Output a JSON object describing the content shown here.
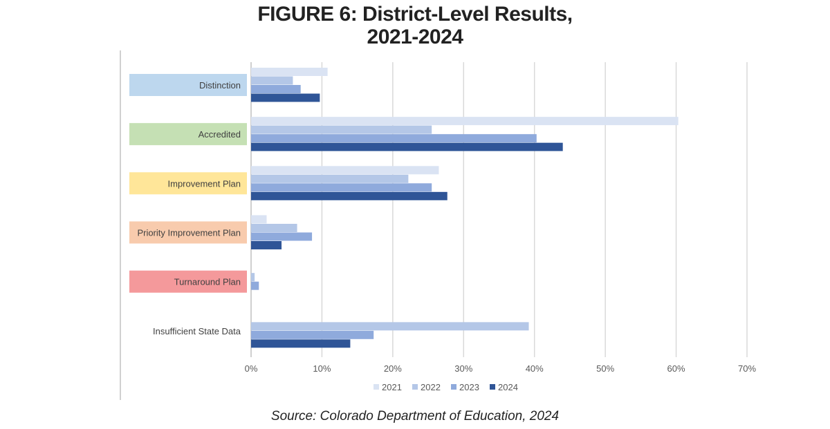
{
  "title_line1": "FIGURE 6: District-Level Results,",
  "title_line2": "2021-2024",
  "source": "Source: Colorado Department of Education, 2024",
  "chart_data": {
    "type": "bar",
    "orientation": "horizontal",
    "categories": [
      "Distinction",
      "Accredited",
      "Improvement Plan",
      "Priority Improvement Plan",
      "Turnaround Plan",
      "Insufficient State Data"
    ],
    "category_colors": [
      "#bdd7ee",
      "#c5e0b4",
      "#ffe699",
      "#f8cbad",
      "#f4999b",
      "#ffffff"
    ],
    "series": [
      {
        "name": "2021",
        "color": "#dae3f3",
        "values": [
          10.8,
          60.3,
          26.5,
          2.2,
          0,
          0
        ]
      },
      {
        "name": "2022",
        "color": "#b4c7e7",
        "values": [
          5.9,
          25.5,
          22.2,
          6.5,
          0.5,
          39.2
        ]
      },
      {
        "name": "2023",
        "color": "#8faadc",
        "values": [
          7.0,
          40.3,
          25.5,
          8.6,
          1.1,
          17.3
        ]
      },
      {
        "name": "2024",
        "color": "#2f5597",
        "values": [
          9.7,
          44.0,
          27.7,
          4.3,
          0,
          14.0
        ]
      }
    ],
    "xlim": [
      0,
      70
    ],
    "x_ticks": [
      "0%",
      "10%",
      "20%",
      "30%",
      "40%",
      "50%",
      "60%",
      "70%"
    ],
    "grid": true,
    "legend_position": "bottom"
  }
}
